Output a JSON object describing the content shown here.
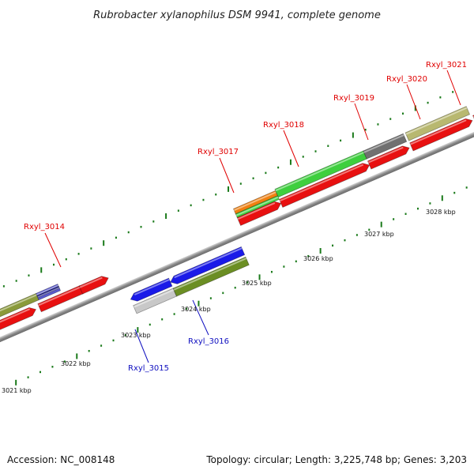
{
  "title": "Rubrobacter xylanophilus DSM 9941, complete genome",
  "footer": {
    "accession": "Accession: NC_008148",
    "topology": "Topology: circular; Length: 3,225,748 bp; Genes: 3,203"
  },
  "colors": {
    "forward_label": "#e00000",
    "reverse_label": "#1010c0",
    "tick": "#1a7a1a",
    "backbone": "#a0a0a0"
  },
  "kbp_labels": [
    {
      "text": "3021 kbp"
    },
    {
      "text": "3022 kbp"
    },
    {
      "text": "3023 kbp"
    },
    {
      "text": "3024 kbp"
    },
    {
      "text": "3025 kbp"
    },
    {
      "text": "3026 kbp"
    },
    {
      "text": "3027 kbp"
    },
    {
      "text": "3028 kbp"
    }
  ],
  "gene_labels": [
    {
      "text": "Rxyl_3014",
      "strand": "forward"
    },
    {
      "text": "Rxyl_3015",
      "strand": "reverse"
    },
    {
      "text": "Rxyl_3016",
      "strand": "reverse"
    },
    {
      "text": "Rxyl_3017",
      "strand": "forward"
    },
    {
      "text": "Rxyl_3018",
      "strand": "forward"
    },
    {
      "text": "Rxyl_3019",
      "strand": "forward"
    },
    {
      "text": "Rxyl_3020",
      "strand": "forward"
    },
    {
      "text": "Rxyl_3021",
      "strand": "forward"
    }
  ]
}
